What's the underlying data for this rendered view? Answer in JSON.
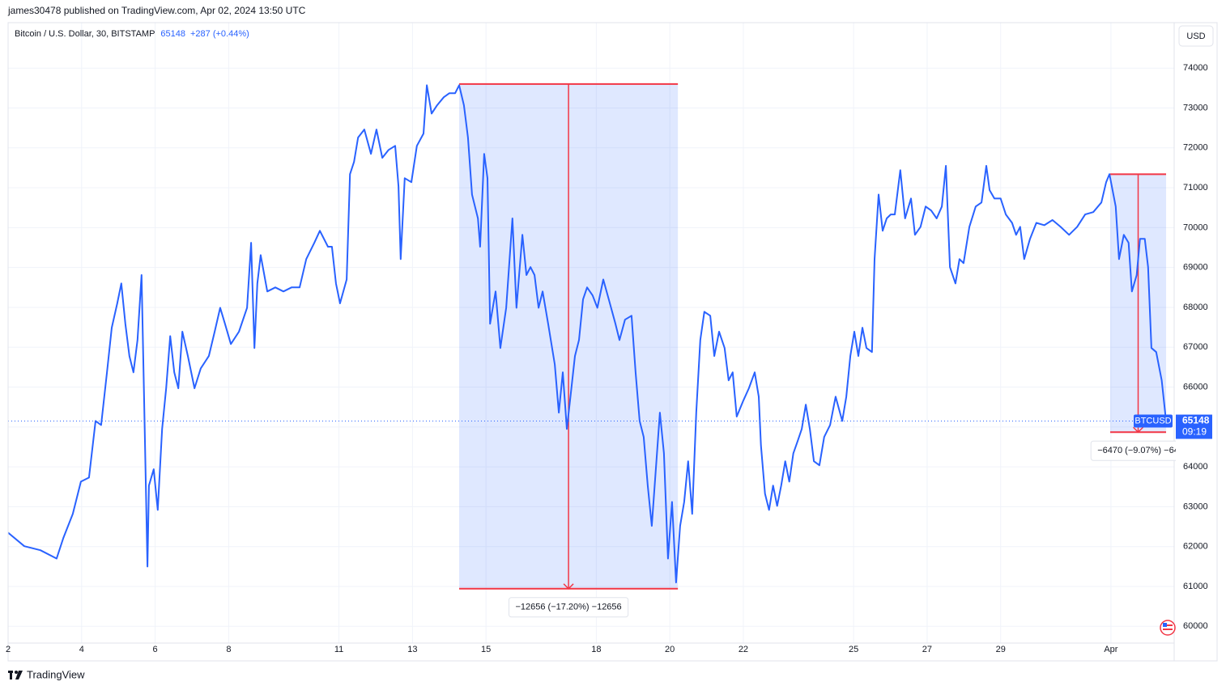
{
  "chart_data": {
    "type": "line",
    "published": "james30478 published on TradingView.com, Apr 02, 2024 13:50 UTC",
    "title": "Bitcoin / U.S. Dollar, 30, BITSTAMP",
    "last_price": 65148,
    "change": "+287 (+0.44%)",
    "currency": "USD",
    "countdown": "09:19",
    "logo": "TradingView",
    "x": [
      2.0,
      2.44,
      2.88,
      3.32,
      3.5,
      3.76,
      3.98,
      4.2,
      4.38,
      4.53,
      4.69,
      4.82,
      4.97,
      5.08,
      5.19,
      5.3,
      5.41,
      5.52,
      5.63,
      5.7,
      5.79,
      5.83,
      5.96,
      6.07,
      6.19,
      6.3,
      6.41,
      6.52,
      6.63,
      6.74,
      6.89,
      7.07,
      7.24,
      7.46,
      7.62,
      7.77,
      7.9,
      8.06,
      8.28,
      8.5,
      8.61,
      8.7,
      8.78,
      8.87,
      9.05,
      9.27,
      9.49,
      9.71,
      9.93,
      10.11,
      10.33,
      10.48,
      10.7,
      10.81,
      10.92,
      11.03,
      11.21,
      11.3,
      11.41,
      11.52,
      11.69,
      11.87,
      12.02,
      12.18,
      12.35,
      12.53,
      12.62,
      12.68,
      12.79,
      12.97,
      13.12,
      13.3,
      13.39,
      13.52,
      13.67,
      13.85,
      14.0,
      14.16,
      14.27,
      14.4,
      14.51,
      14.62,
      14.78,
      14.84,
      14.95,
      15.04,
      15.11,
      15.26,
      15.39,
      15.55,
      15.72,
      15.83,
      15.99,
      16.1,
      16.21,
      16.32,
      16.43,
      16.54,
      16.69,
      16.87,
      16.98,
      17.09,
      17.2,
      17.31,
      17.42,
      17.53,
      17.64,
      17.75,
      17.9,
      18.03,
      18.19,
      18.34,
      18.52,
      18.63,
      18.78,
      18.96,
      19.07,
      19.18,
      19.29,
      19.4,
      19.51,
      19.62,
      19.73,
      19.84,
      19.95,
      20.06,
      20.17,
      20.28,
      20.39,
      20.5,
      20.61,
      20.72,
      20.83,
      20.94,
      21.1,
      21.21,
      21.34,
      21.49,
      21.6,
      21.71,
      21.82,
      22.0,
      22.15,
      22.31,
      22.42,
      22.48,
      22.59,
      22.7,
      22.81,
      22.92,
      23.03,
      23.14,
      23.25,
      23.36,
      23.48,
      23.59,
      23.7,
      23.81,
      23.92,
      24.07,
      24.2,
      24.36,
      24.51,
      24.69,
      24.8,
      24.91,
      25.02,
      25.13,
      25.24,
      25.35,
      25.5,
      25.57,
      25.68,
      25.79,
      25.9,
      26.01,
      26.12,
      26.27,
      26.4,
      26.56,
      26.67,
      26.82,
      26.96,
      27.11,
      27.26,
      27.4,
      27.51,
      27.62,
      27.77,
      27.88,
      27.99,
      28.15,
      28.32,
      28.48,
      28.61,
      28.7,
      28.83,
      29.0,
      29.14,
      29.31,
      29.42,
      29.53,
      29.64,
      29.8,
      29.97,
      30.19,
      30.41,
      30.63,
      30.86,
      31.08,
      31.3,
      31.52,
      31.74,
      31.87,
      31.96,
      32.13,
      32.22,
      32.35,
      32.48,
      32.57,
      32.7,
      32.79,
      32.92,
      33.01,
      33.1,
      33.23,
      33.38,
      33.5
    ],
    "series": [
      {
        "name": "BTCUSD",
        "color": "#2962ff",
        "values": [
          62350,
          62010,
          61910,
          61700,
          62210,
          62820,
          63630,
          63730,
          65150,
          65050,
          66370,
          67490,
          68100,
          68600,
          67590,
          66780,
          66370,
          67180,
          68810,
          65660,
          61500,
          63530,
          63940,
          62920,
          64950,
          65970,
          67280,
          66370,
          65970,
          67390,
          66780,
          65970,
          66470,
          66780,
          67390,
          67990,
          67590,
          67080,
          67390,
          67990,
          69620,
          66980,
          68600,
          69310,
          68400,
          68500,
          68400,
          68500,
          68500,
          69210,
          69620,
          69920,
          69520,
          69520,
          68600,
          68100,
          68700,
          71340,
          71650,
          72260,
          72460,
          71850,
          72460,
          71750,
          71950,
          72050,
          71040,
          69210,
          71240,
          71140,
          72050,
          72360,
          73570,
          72860,
          73070,
          73270,
          73370,
          73370,
          73570,
          73070,
          72260,
          70830,
          70230,
          69520,
          71850,
          71240,
          67590,
          68400,
          66980,
          67990,
          70230,
          67990,
          69820,
          68810,
          69010,
          68810,
          67990,
          68400,
          67590,
          66570,
          65360,
          66370,
          64950,
          65860,
          66780,
          67180,
          68200,
          68500,
          68300,
          67990,
          68700,
          68200,
          67590,
          67180,
          67690,
          67790,
          66370,
          65150,
          64750,
          63530,
          62520,
          63940,
          65360,
          64340,
          61700,
          63120,
          61100,
          62520,
          63120,
          64140,
          62820,
          65360,
          67180,
          67890,
          67790,
          66780,
          67390,
          66980,
          66170,
          66370,
          65260,
          65660,
          65970,
          66370,
          65760,
          64540,
          63330,
          62920,
          63530,
          63020,
          63530,
          64140,
          63630,
          64340,
          64650,
          64950,
          65560,
          64950,
          64140,
          64040,
          64750,
          65050,
          65760,
          65150,
          65760,
          66780,
          67390,
          66780,
          67490,
          66980,
          66880,
          69210,
          70830,
          69920,
          70230,
          70330,
          70330,
          71440,
          70230,
          70730,
          69820,
          70020,
          70530,
          70430,
          70230,
          70530,
          71550,
          69010,
          68600,
          69210,
          69110,
          70020,
          70530,
          70630,
          71550,
          70940,
          70730,
          70730,
          70330,
          70120,
          69820,
          70020,
          69210,
          69720,
          70120,
          70060,
          70190,
          70020,
          69820,
          70020,
          70330,
          70390,
          70630,
          71140,
          71340,
          70530,
          69210,
          69820,
          69620,
          68400,
          68810,
          69720,
          69720,
          69010,
          66980,
          66880,
          66170,
          65148
        ]
      }
    ],
    "xlim": [
      2,
      33.72
    ],
    "xticks": [
      2,
      4,
      6,
      8,
      11,
      13,
      15,
      18,
      20,
      22,
      25,
      27,
      29,
      {
        "value": 32,
        "label": "Apr"
      }
    ],
    "ylim": [
      59580,
      75100
    ],
    "yticks": [
      60000,
      61000,
      62000,
      63000,
      64000,
      65000,
      66000,
      67000,
      68000,
      69000,
      70000,
      71000,
      72000,
      73000,
      74000
    ],
    "grid": true,
    "measurements": [
      {
        "x": [
          14.27,
          20.22
        ],
        "y": [
          73600,
          60944
        ],
        "label": "−12656 (−17.20%) −12656"
      },
      {
        "x": [
          31.98,
          33.5
        ],
        "y": [
          71340,
          64870
        ],
        "label": "−6470 (−9.07%) −64"
      }
    ]
  }
}
